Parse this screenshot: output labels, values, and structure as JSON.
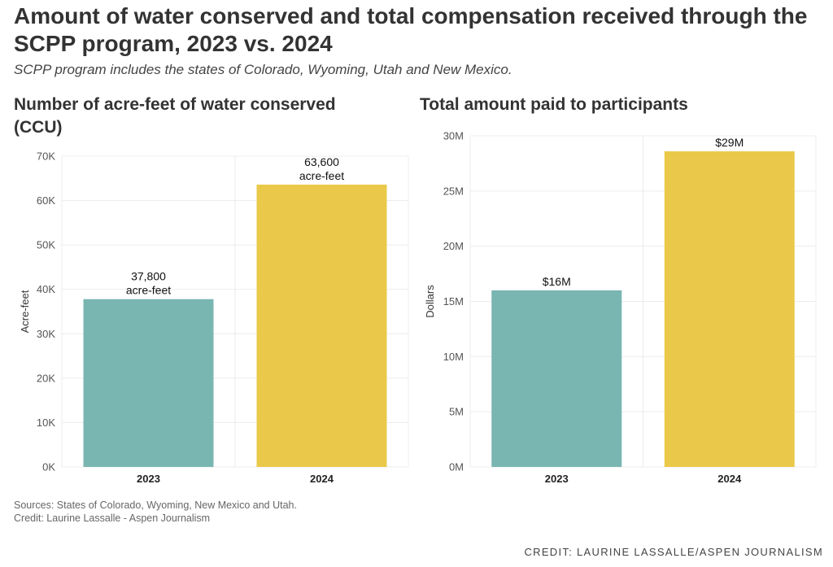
{
  "header": {
    "title": "Amount of water conserved and total compensation received through the SCPP program, 2023 vs. 2024",
    "subtitle": "SCPP program includes the states of Colorado, Wyoming, Utah and New Mexico."
  },
  "chart_data": [
    {
      "type": "bar",
      "title": "Number of acre-feet of water conserved (CCU)",
      "categories": [
        "2023",
        "2024"
      ],
      "values": [
        37800,
        63600
      ],
      "data_labels": [
        [
          "37,800",
          "acre-feet"
        ],
        [
          "63,600",
          "acre-feet"
        ]
      ],
      "ylabel": "Acre-feet",
      "ylim": [
        0,
        70000
      ],
      "yticks": [
        0,
        10000,
        20000,
        30000,
        40000,
        50000,
        60000,
        70000
      ],
      "ytick_labels": [
        "0K",
        "10K",
        "20K",
        "30K",
        "40K",
        "50K",
        "60K",
        "70K"
      ],
      "colors": [
        "#79b6b2",
        "#eac94a"
      ],
      "grid": true
    },
    {
      "type": "bar",
      "title": "Total amount paid to participants",
      "categories": [
        "2023",
        "2024"
      ],
      "values": [
        16000000,
        28600000
      ],
      "data_labels": [
        [
          "$16M"
        ],
        [
          "$29M"
        ]
      ],
      "ylabel": "Dollars",
      "ylim": [
        0,
        30000000
      ],
      "yticks": [
        0,
        5000000,
        10000000,
        15000000,
        20000000,
        25000000,
        30000000
      ],
      "ytick_labels": [
        "0M",
        "5M",
        "10M",
        "15M",
        "20M",
        "25M",
        "30M"
      ],
      "colors": [
        "#79b6b2",
        "#eac94a"
      ],
      "grid": true
    }
  ],
  "footer": {
    "sources": "Sources: States of Colorado, Wyoming, New Mexico and Utah.",
    "credit_line": "Credit: Laurine Lassalle - Aspen Journalism"
  },
  "credit": "CREDIT: LAURINE LASSALLE/ASPEN JOURNALISM"
}
